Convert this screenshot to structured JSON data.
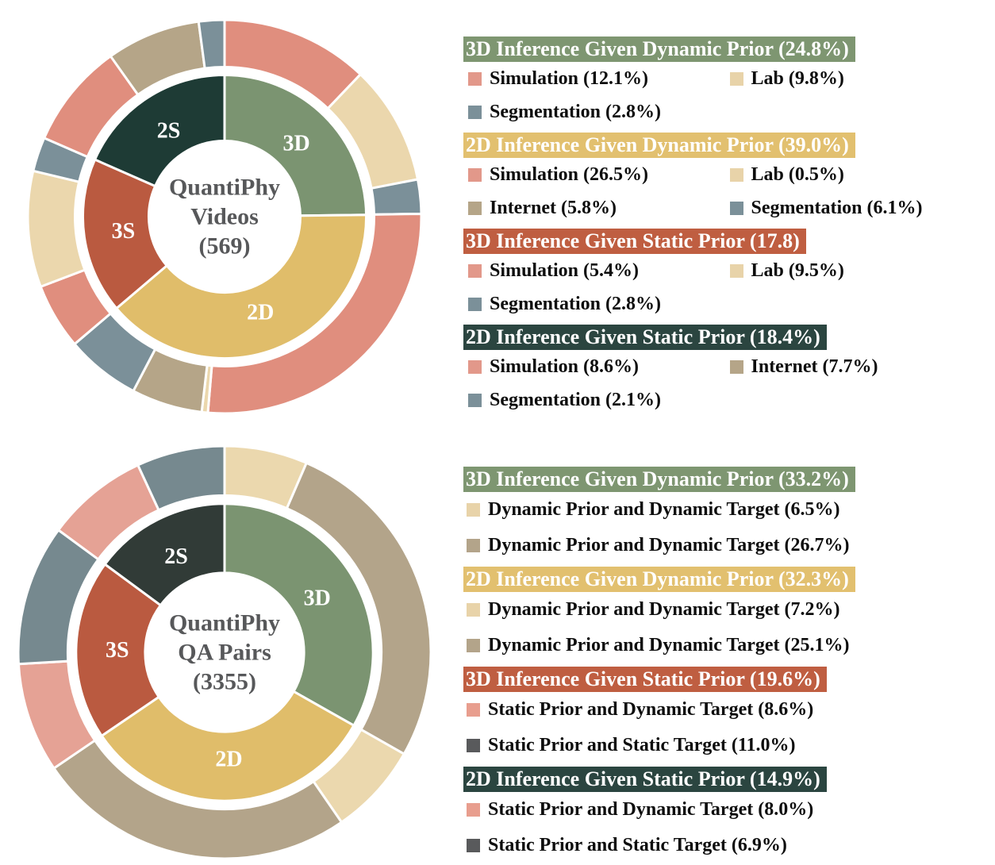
{
  "chart_data": [
    {
      "type": "pie",
      "id": "quantiphy-videos",
      "center_lines": [
        "QuantiPhy",
        "Videos",
        "(569)"
      ],
      "center_text_color": "#57585A",
      "inner_ring": [
        {
          "label": "3D",
          "pct": 24.8,
          "color": "#7B9471"
        },
        {
          "label": "2D",
          "pct": 39.0,
          "color": "#E0BD6A"
        },
        {
          "label": "3S",
          "pct": 17.8,
          "color": "#BA5A40"
        },
        {
          "label": "2S",
          "pct": 18.4,
          "color": "#1E3B35"
        }
      ],
      "outer_ring": [
        {
          "label": "Simulation",
          "pct": 12.1,
          "color": "#E08E7E"
        },
        {
          "label": "Lab",
          "pct": 9.8,
          "color": "#EBD7AD"
        },
        {
          "label": "Segmentation",
          "pct": 2.8,
          "color": "#7B9099"
        },
        {
          "label": "Simulation",
          "pct": 26.5,
          "color": "#E08E7E"
        },
        {
          "label": "Lab",
          "pct": 0.5,
          "color": "#EBD7AD"
        },
        {
          "label": "Internet",
          "pct": 5.8,
          "color": "#B5A588"
        },
        {
          "label": "Segmentation",
          "pct": 6.1,
          "color": "#7B9099"
        },
        {
          "label": "Simulation",
          "pct": 5.4,
          "color": "#E08E7E"
        },
        {
          "label": "Lab",
          "pct": 9.5,
          "color": "#EBD7AD"
        },
        {
          "label": "Segmentation",
          "pct": 2.8,
          "color": "#7B9099"
        },
        {
          "label": "Simulation",
          "pct": 8.6,
          "color": "#E08E7E"
        },
        {
          "label": "Internet",
          "pct": 7.7,
          "color": "#B5A588"
        },
        {
          "label": "Segmentation",
          "pct": 2.1,
          "color": "#7B9099"
        }
      ],
      "legend": {
        "groups": [
          {
            "title": "3D Inference Given Dynamic Prior (24.8%)",
            "bg": "#7E9671",
            "items": [
              {
                "label": "Simulation (12.1%)",
                "swatch": "#E2988A"
              },
              {
                "label": "Lab (9.8%)",
                "swatch": "#E8D3A9"
              },
              {
                "label": "Segmentation (2.8%)",
                "swatch": "#7B9099"
              }
            ]
          },
          {
            "title": "2D Inference Given Dynamic Prior (39.0%)",
            "bg": "#E2C06F",
            "items": [
              {
                "label": "Simulation (26.5%)",
                "swatch": "#E2988A"
              },
              {
                "label": "Lab (0.5%)",
                "swatch": "#E8D3A9"
              },
              {
                "label": "Internet (5.8%)",
                "swatch": "#B5A588"
              },
              {
                "label": "Segmentation (6.1%)",
                "swatch": "#7B9099"
              }
            ]
          },
          {
            "title": "3D Inference Given Static Prior (17.8)",
            "bg": "#BF5E41",
            "items": [
              {
                "label": "Simulation (5.4%)",
                "swatch": "#E2988A"
              },
              {
                "label": "Lab (9.5%)",
                "swatch": "#E8D3A9"
              },
              {
                "label": "Segmentation (2.8%)",
                "swatch": "#7B9099"
              }
            ]
          },
          {
            "title": "2D Inference Given Static Prior (18.4%)",
            "bg": "#2B4540",
            "items": [
              {
                "label": "Simulation (8.6%)",
                "swatch": "#E2988A"
              },
              {
                "label": "Internet (7.7%)",
                "swatch": "#B5A588"
              },
              {
                "label": "Segmentation (2.1%)",
                "swatch": "#7B9099"
              }
            ]
          }
        ]
      }
    },
    {
      "type": "pie",
      "id": "quantiphy-qa-pairs",
      "center_lines": [
        "QuantiPhy",
        "QA Pairs",
        "(3355)"
      ],
      "center_text_color": "#57585A",
      "inner_ring": [
        {
          "label": "3D",
          "pct": 33.2,
          "color": "#7B9471"
        },
        {
          "label": "2D",
          "pct": 32.3,
          "color": "#E0BD6A"
        },
        {
          "label": "3S",
          "pct": 19.6,
          "color": "#BA5A40"
        },
        {
          "label": "2S",
          "pct": 14.9,
          "color": "#313B37"
        }
      ],
      "outer_ring": [
        {
          "label": "Dynamic Prior and Dynamic Target",
          "pct": 6.5,
          "color": "#EBD8AE"
        },
        {
          "label": "Dynamic Prior and Dynamic Target",
          "pct": 26.7,
          "color": "#B3A48A"
        },
        {
          "label": "Dynamic Prior and Dynamic Target",
          "pct": 7.2,
          "color": "#EBD8AE"
        },
        {
          "label": "Dynamic Prior and Dynamic Target",
          "pct": 25.1,
          "color": "#B3A48A"
        },
        {
          "label": "Static Prior and Dynamic Target",
          "pct": 8.6,
          "color": "#E5A295"
        },
        {
          "label": "Static Prior and Static Target",
          "pct": 11.0,
          "color": "#76898F"
        },
        {
          "label": "Static Prior and Dynamic Target",
          "pct": 8.0,
          "color": "#E5A295"
        },
        {
          "label": "Static Prior and Static Target",
          "pct": 6.9,
          "color": "#76898F"
        }
      ],
      "legend": {
        "groups": [
          {
            "title": "3D Inference Given Dynamic Prior (33.2%)",
            "bg": "#7E9671",
            "items": [
              {
                "label": "Dynamic Prior and Dynamic Target (6.5%)",
                "swatch": "#E8D3A9"
              },
              {
                "label": "Dynamic Prior and Dynamic Target (26.7%)",
                "swatch": "#B3A48A"
              }
            ]
          },
          {
            "title": "2D Inference Given Dynamic Prior (32.3%)",
            "bg": "#E2C06F",
            "items": [
              {
                "label": "Dynamic Prior and Dynamic Target (7.2%)",
                "swatch": "#E8D3A9"
              },
              {
                "label": "Dynamic Prior and Dynamic Target (25.1%)",
                "swatch": "#B3A48A"
              }
            ]
          },
          {
            "title": "3D Inference Given Static Prior (19.6%)",
            "bg": "#BF5E41",
            "items": [
              {
                "label": "Static Prior and Dynamic Target (8.6%)",
                "swatch": "#E89E8E"
              },
              {
                "label": "Static Prior and Static Target (11.0%)",
                "swatch": "#595A5C"
              }
            ]
          },
          {
            "title": "2D Inference Given Static Prior (14.9%)",
            "bg": "#2B4540",
            "items": [
              {
                "label": "Static Prior and Dynamic Target (8.0%)",
                "swatch": "#E89E8E"
              },
              {
                "label": "Static Prior and Static Target (6.9%)",
                "swatch": "#595A5C"
              }
            ]
          }
        ]
      }
    }
  ]
}
